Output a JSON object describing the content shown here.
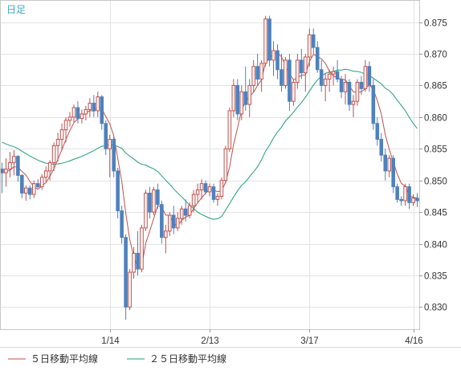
{
  "chart_data": {
    "type": "candlestick",
    "period_label": "日足",
    "y_ticks": [
      0.83,
      0.835,
      0.84,
      0.845,
      0.85,
      0.855,
      0.86,
      0.865,
      0.87,
      0.875
    ],
    "ylim": [
      0.8265,
      0.8785
    ],
    "x_tick_labels": [
      {
        "label": "1/14",
        "index": 27
      },
      {
        "label": "2/13",
        "index": 52
      },
      {
        "label": "3/17",
        "index": 77
      },
      {
        "label": "4/16",
        "index": 103
      }
    ],
    "num_slots": 105,
    "candles": [
      [
        0.8518,
        0.8528,
        0.848,
        0.8512
      ],
      [
        0.8512,
        0.8535,
        0.849,
        0.8518
      ],
      [
        0.8518,
        0.8545,
        0.8505,
        0.8528
      ],
      [
        0.8528,
        0.8548,
        0.8508,
        0.8538
      ],
      [
        0.8538,
        0.854,
        0.8498,
        0.8508
      ],
      [
        0.8508,
        0.851,
        0.8472,
        0.848
      ],
      [
        0.848,
        0.8492,
        0.8468,
        0.8488
      ],
      [
        0.8488,
        0.8492,
        0.847,
        0.8478
      ],
      [
        0.8478,
        0.85,
        0.8472,
        0.8495
      ],
      [
        0.8495,
        0.8502,
        0.8488,
        0.849
      ],
      [
        0.849,
        0.851,
        0.8485,
        0.8505
      ],
      [
        0.8505,
        0.8522,
        0.8498,
        0.8515
      ],
      [
        0.8515,
        0.8532,
        0.85,
        0.8528
      ],
      [
        0.8528,
        0.856,
        0.8515,
        0.8555
      ],
      [
        0.8555,
        0.8575,
        0.853,
        0.8565
      ],
      [
        0.8565,
        0.859,
        0.8548,
        0.858
      ],
      [
        0.858,
        0.86,
        0.856,
        0.8595
      ],
      [
        0.8595,
        0.8608,
        0.8585,
        0.86
      ],
      [
        0.86,
        0.862,
        0.8592,
        0.8615
      ],
      [
        0.8615,
        0.8625,
        0.859,
        0.8598
      ],
      [
        0.8598,
        0.8612,
        0.859,
        0.8605
      ],
      [
        0.8605,
        0.8618,
        0.8595,
        0.8612
      ],
      [
        0.8612,
        0.863,
        0.86,
        0.8622
      ],
      [
        0.8622,
        0.8635,
        0.86,
        0.861
      ],
      [
        0.861,
        0.864,
        0.86,
        0.8632
      ],
      [
        0.8632,
        0.8635,
        0.858,
        0.859
      ],
      [
        0.859,
        0.8595,
        0.854,
        0.855
      ],
      [
        0.855,
        0.8572,
        0.8505,
        0.8565
      ],
      [
        0.8565,
        0.857,
        0.8505,
        0.8515
      ],
      [
        0.8515,
        0.852,
        0.844,
        0.8452
      ],
      [
        0.8452,
        0.846,
        0.84,
        0.841
      ],
      [
        0.841,
        0.8415,
        0.828,
        0.83
      ],
      [
        0.83,
        0.836,
        0.8295,
        0.8355
      ],
      [
        0.8355,
        0.8395,
        0.8345,
        0.8385
      ],
      [
        0.8385,
        0.842,
        0.835,
        0.836
      ],
      [
        0.836,
        0.843,
        0.8355,
        0.8425
      ],
      [
        0.8425,
        0.8485,
        0.842,
        0.848
      ],
      [
        0.848,
        0.849,
        0.844,
        0.845
      ],
      [
        0.845,
        0.849,
        0.8445,
        0.8485
      ],
      [
        0.8485,
        0.8495,
        0.8455,
        0.8462
      ],
      [
        0.8462,
        0.8468,
        0.84,
        0.841
      ],
      [
        0.841,
        0.843,
        0.8385,
        0.842
      ],
      [
        0.842,
        0.845,
        0.8412,
        0.8445
      ],
      [
        0.8445,
        0.846,
        0.8415,
        0.8425
      ],
      [
        0.8425,
        0.845,
        0.842,
        0.844
      ],
      [
        0.844,
        0.846,
        0.843,
        0.8455
      ],
      [
        0.8455,
        0.847,
        0.8435,
        0.8445
      ],
      [
        0.8445,
        0.8465,
        0.844,
        0.846
      ],
      [
        0.846,
        0.8485,
        0.845,
        0.8478
      ],
      [
        0.8478,
        0.8495,
        0.8465,
        0.8485
      ],
      [
        0.8485,
        0.8502,
        0.847,
        0.8495
      ],
      [
        0.8495,
        0.85,
        0.8478,
        0.8482
      ],
      [
        0.8482,
        0.8495,
        0.8475,
        0.849
      ],
      [
        0.849,
        0.8495,
        0.8465,
        0.847
      ],
      [
        0.847,
        0.848,
        0.846,
        0.8475
      ],
      [
        0.8475,
        0.8505,
        0.847,
        0.85
      ],
      [
        0.85,
        0.8555,
        0.8495,
        0.855
      ],
      [
        0.855,
        0.8615,
        0.8545,
        0.861
      ],
      [
        0.861,
        0.866,
        0.86,
        0.865
      ],
      [
        0.865,
        0.866,
        0.8595,
        0.8605
      ],
      [
        0.8605,
        0.865,
        0.8595,
        0.864
      ],
      [
        0.864,
        0.868,
        0.861,
        0.862
      ],
      [
        0.862,
        0.866,
        0.86,
        0.865
      ],
      [
        0.865,
        0.869,
        0.864,
        0.868
      ],
      [
        0.868,
        0.87,
        0.865,
        0.866
      ],
      [
        0.866,
        0.869,
        0.864,
        0.8685
      ],
      [
        0.8685,
        0.876,
        0.868,
        0.8755
      ],
      [
        0.8755,
        0.876,
        0.868,
        0.869
      ],
      [
        0.869,
        0.872,
        0.8665,
        0.8705
      ],
      [
        0.8705,
        0.8715,
        0.866,
        0.8675
      ],
      [
        0.8675,
        0.87,
        0.864,
        0.865
      ],
      [
        0.865,
        0.8695,
        0.8645,
        0.869
      ],
      [
        0.869,
        0.87,
        0.861,
        0.8625
      ],
      [
        0.8625,
        0.866,
        0.8618,
        0.8655
      ],
      [
        0.8655,
        0.87,
        0.8645,
        0.869
      ],
      [
        0.869,
        0.8708,
        0.866,
        0.867
      ],
      [
        0.867,
        0.87,
        0.864,
        0.8695
      ],
      [
        0.8695,
        0.874,
        0.868,
        0.873
      ],
      [
        0.873,
        0.874,
        0.87,
        0.871
      ],
      [
        0.871,
        0.872,
        0.867,
        0.8675
      ],
      [
        0.8675,
        0.869,
        0.864,
        0.865
      ],
      [
        0.865,
        0.867,
        0.8625,
        0.866
      ],
      [
        0.866,
        0.8675,
        0.864,
        0.8668
      ],
      [
        0.8668,
        0.868,
        0.865,
        0.8672
      ],
      [
        0.8672,
        0.869,
        0.8655,
        0.866
      ],
      [
        0.866,
        0.8665,
        0.863,
        0.864
      ],
      [
        0.864,
        0.8668,
        0.862,
        0.8655
      ],
      [
        0.8655,
        0.866,
        0.861,
        0.862
      ],
      [
        0.862,
        0.8635,
        0.86,
        0.8625
      ],
      [
        0.8625,
        0.866,
        0.8618,
        0.8655
      ],
      [
        0.8655,
        0.8665,
        0.8635,
        0.8645
      ],
      [
        0.8645,
        0.869,
        0.864,
        0.868
      ],
      [
        0.868,
        0.8688,
        0.864,
        0.865
      ],
      [
        0.865,
        0.866,
        0.858,
        0.859
      ],
      [
        0.859,
        0.86,
        0.8555,
        0.8565
      ],
      [
        0.8565,
        0.8575,
        0.853,
        0.854
      ],
      [
        0.854,
        0.855,
        0.85,
        0.8515
      ],
      [
        0.8515,
        0.854,
        0.8505,
        0.8535
      ],
      [
        0.8535,
        0.854,
        0.848,
        0.849
      ],
      [
        0.849,
        0.8495,
        0.8465,
        0.847
      ],
      [
        0.847,
        0.8475,
        0.846,
        0.8468
      ],
      [
        0.8468,
        0.8495,
        0.846,
        0.849
      ],
      [
        0.849,
        0.8495,
        0.8455,
        0.8465
      ],
      [
        0.8465,
        0.8478,
        0.846,
        0.8472
      ],
      [
        0.8472,
        0.848,
        0.8458,
        0.8468
      ]
    ],
    "moving_averages": [
      {
        "name": "５日移動平均線",
        "color": "#c0504d",
        "period": 5
      },
      {
        "name": "２５日移動平均線",
        "color": "#1fa074",
        "period": 25
      }
    ],
    "ma25_leadin": [
      0.859,
      0.8588,
      0.8586,
      0.8584,
      0.8582,
      0.858,
      0.8578,
      0.8575,
      0.8572,
      0.8569,
      0.8566,
      0.8563,
      0.856,
      0.8557,
      0.8554,
      0.8552,
      0.855,
      0.8548,
      0.8546,
      0.8544,
      0.8542,
      0.854,
      0.8538,
      0.8536
    ],
    "colors": {
      "up": "#c0504d",
      "down": "#4e81bd",
      "grid": "#e3e3e3",
      "frame": "#c8c8c8",
      "period_label": "#3aa7c8"
    }
  }
}
